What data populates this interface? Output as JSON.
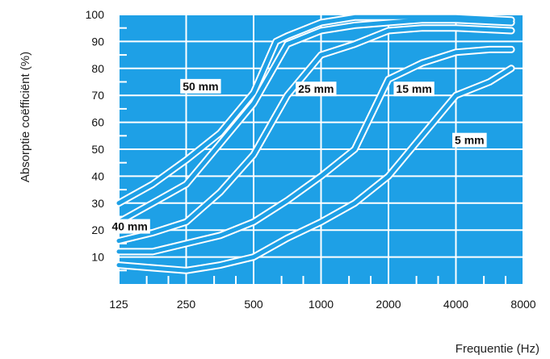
{
  "chart_data": {
    "type": "line",
    "xlabel": "Frequentie (Hz)",
    "ylabel": "Absorptie coëfficiënt (%)",
    "x_scale": "log2",
    "xlim": [
      125,
      8000
    ],
    "ylim": [
      0,
      100
    ],
    "x_ticks": [
      125,
      250,
      500,
      1000,
      2000,
      4000,
      8000
    ],
    "y_ticks": [
      10,
      20,
      30,
      40,
      50,
      60,
      70,
      80,
      90,
      100
    ],
    "grid": true,
    "colors": {
      "background": "#1ea0e6",
      "curve": "#1ea0e6",
      "grid": "#ffffff",
      "plot_area": "#ffffff"
    },
    "series": [
      {
        "name": "50 mm",
        "x": [
          125,
          177,
          250,
          354,
          500,
          630,
          707,
          1000,
          1414,
          2000,
          2828,
          4000,
          7071
        ],
        "y": [
          30,
          37,
          46,
          56,
          71,
          90,
          92,
          97,
          99,
          99,
          99,
          99,
          98
        ]
      },
      {
        "name": "40 mm",
        "x": [
          125,
          177,
          250,
          354,
          500,
          707,
          1000,
          1414,
          2000,
          2828,
          4000,
          7071
        ],
        "y": [
          23,
          30,
          37,
          52,
          67,
          89,
          94,
          96,
          97,
          98,
          98,
          97
        ]
      },
      {
        "name": "25 mm",
        "x": [
          125,
          177,
          250,
          354,
          500,
          707,
          1000,
          1414,
          2000,
          2828,
          4000,
          7071
        ],
        "y": [
          16,
          19,
          23,
          34,
          48,
          70,
          85,
          89,
          94,
          95,
          95,
          94
        ]
      },
      {
        "name": "15 mm",
        "x": [
          125,
          177,
          250,
          354,
          500,
          707,
          1000,
          1414,
          2000,
          2828,
          4000,
          5657,
          7071
        ],
        "y": [
          12,
          12,
          15,
          18,
          23,
          31,
          40,
          50,
          76,
          82,
          86,
          87,
          87
        ]
      },
      {
        "name": "5 mm",
        "x": [
          125,
          177,
          250,
          354,
          500,
          707,
          1000,
          1414,
          2000,
          2828,
          4000,
          5657,
          7071
        ],
        "y": [
          7,
          6,
          5,
          7,
          10,
          17,
          23,
          30,
          40,
          55,
          70,
          75,
          80
        ]
      }
    ]
  }
}
